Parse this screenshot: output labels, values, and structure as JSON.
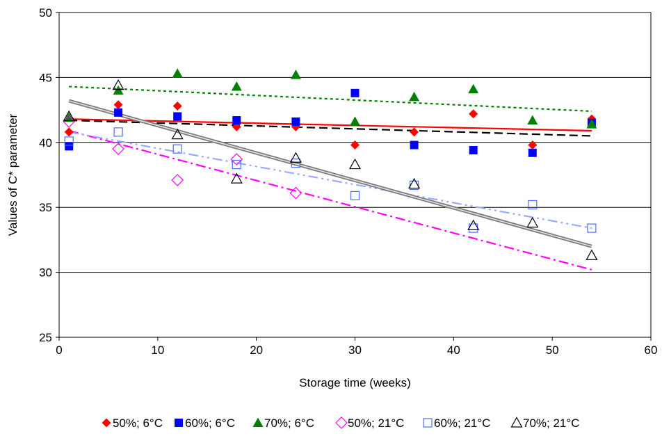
{
  "chart_data": {
    "type": "scatter",
    "title": "",
    "xlabel": "Storage time (weeks)",
    "ylabel": "Values of C* parameter",
    "xlim": [
      0,
      60
    ],
    "ylim": [
      25,
      50
    ],
    "xticks": [
      0,
      10,
      20,
      30,
      40,
      50,
      60
    ],
    "yticks": [
      25,
      30,
      35,
      40,
      45,
      50
    ],
    "grid": "horizontal",
    "legend_position": "bottom",
    "series": [
      {
        "name": "50%; 6°C",
        "marker": "diamond",
        "filled": true,
        "color": "#ff0000",
        "points": [
          [
            1,
            40.8
          ],
          [
            6,
            42.9
          ],
          [
            12,
            42.8
          ],
          [
            18,
            41.2
          ],
          [
            24,
            41.2
          ],
          [
            30,
            39.8
          ],
          [
            36,
            40.8
          ],
          [
            42,
            42.2
          ],
          [
            48,
            39.8
          ],
          [
            54,
            41.8
          ]
        ],
        "trend": {
          "from": [
            1,
            41.8
          ],
          "to": [
            54,
            40.9
          ],
          "style": "solid",
          "color": "#ff0000"
        }
      },
      {
        "name": "60%; 6°C",
        "marker": "square",
        "filled": true,
        "color": "#0000ff",
        "points": [
          [
            1,
            39.7
          ],
          [
            6,
            42.3
          ],
          [
            12,
            42.0
          ],
          [
            18,
            41.7
          ],
          [
            24,
            41.6
          ],
          [
            30,
            43.8
          ],
          [
            36,
            39.8
          ],
          [
            42,
            39.4
          ],
          [
            48,
            39.2
          ],
          [
            54,
            41.5
          ]
        ],
        "trend": {
          "from": [
            1,
            41.7
          ],
          "to": [
            54,
            40.5
          ],
          "style": "long-dash",
          "color": "#000000"
        }
      },
      {
        "name": "70%; 6°C",
        "marker": "triangle",
        "filled": true,
        "color": "#008000",
        "points": [
          [
            1,
            41.9
          ],
          [
            6,
            44.0
          ],
          [
            12,
            45.3
          ],
          [
            18,
            44.3
          ],
          [
            24,
            45.2
          ],
          [
            30,
            41.6
          ],
          [
            36,
            43.5
          ],
          [
            42,
            44.1
          ],
          [
            48,
            41.7
          ],
          [
            54,
            41.4
          ]
        ],
        "trend": {
          "from": [
            1,
            44.3
          ],
          "to": [
            54,
            42.4
          ],
          "style": "dotted",
          "color": "#008000"
        }
      },
      {
        "name": "50%; 21°C",
        "marker": "diamond",
        "filled": false,
        "color": "#ff00ff",
        "points": [
          [
            1,
            41.6
          ],
          [
            6,
            39.5
          ],
          [
            12,
            37.1
          ],
          [
            18,
            38.7
          ],
          [
            24,
            36.1
          ]
        ],
        "trend": {
          "from": [
            1,
            40.9
          ],
          "to": [
            54,
            30.2
          ],
          "style": "dash-dot",
          "color": "#ff00ff"
        }
      },
      {
        "name": "60%; 21°C",
        "marker": "square",
        "filled": false,
        "color": "#4a6cff",
        "points": [
          [
            1,
            40.1
          ],
          [
            6,
            40.8
          ],
          [
            12,
            39.5
          ],
          [
            18,
            38.3
          ],
          [
            24,
            38.4
          ],
          [
            30,
            35.9
          ],
          [
            36,
            36.7
          ],
          [
            42,
            33.4
          ],
          [
            48,
            35.2
          ],
          [
            54,
            33.4
          ]
        ],
        "trend": {
          "from": [
            1,
            40.8
          ],
          "to": [
            54,
            33.4
          ],
          "style": "dash-dot-dot",
          "color": "#9aa8ff"
        }
      },
      {
        "name": "70%; 21°C",
        "marker": "triangle",
        "filled": false,
        "color": "#000000",
        "points": [
          [
            1,
            42.0
          ],
          [
            6,
            44.4
          ],
          [
            12,
            40.6
          ],
          [
            18,
            37.2
          ],
          [
            24,
            38.8
          ],
          [
            30,
            38.3
          ],
          [
            36,
            36.8
          ],
          [
            42,
            33.6
          ],
          [
            48,
            33.8
          ],
          [
            54,
            31.3
          ]
        ],
        "trend": {
          "from": [
            1,
            43.2
          ],
          "to": [
            54,
            32.0
          ],
          "style": "double-grey",
          "color": "#808080"
        }
      }
    ]
  }
}
